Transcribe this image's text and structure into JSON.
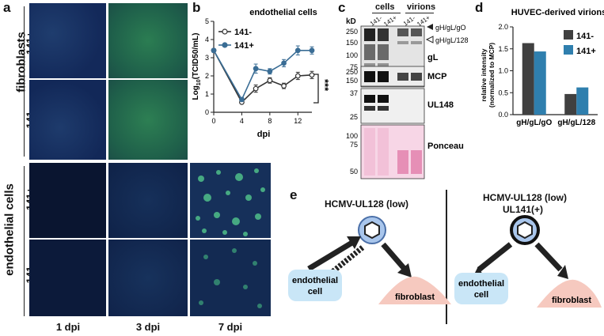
{
  "panel_a": {
    "label": "a",
    "groups": [
      {
        "name": "fibroblasts",
        "rows": [
          "141+",
          "141-"
        ]
      },
      {
        "name": "endothelial cells",
        "rows": [
          "141+",
          "141-"
        ]
      }
    ],
    "columns": [
      "1 dpi",
      "3 dpi",
      "7 dpi"
    ]
  },
  "panel_b": {
    "label": "b",
    "significance": "***",
    "chart_data": {
      "type": "line",
      "title": "endothelial cells",
      "xlabel": "dpi",
      "ylabel": "Log10(TCID50/mL)",
      "ylabel_main": "Log",
      "ylabel_sub": "10",
      "ylabel_rest": "(TCID50/mL)",
      "xlim": [
        0,
        14
      ],
      "ylim": [
        0,
        5
      ],
      "xticks": [
        "0",
        "4",
        "8",
        "12"
      ],
      "xticks_vals": [
        0,
        4,
        8,
        12
      ],
      "yticks": [
        "0",
        "1",
        "2",
        "3",
        "4",
        "5"
      ],
      "x": [
        0,
        4,
        6,
        8,
        10,
        12,
        14
      ],
      "series": [
        {
          "name": "141-",
          "values": [
            3.4,
            0.55,
            1.3,
            1.75,
            1.45,
            2.0,
            2.05
          ],
          "err": [
            0.1,
            0.08,
            0.2,
            0.15,
            0.15,
            0.2,
            0.2
          ],
          "color": "#333333",
          "marker": "open-circle"
        },
        {
          "name": "141+",
          "values": [
            3.4,
            0.7,
            2.4,
            2.25,
            2.7,
            3.4,
            3.4
          ],
          "err": [
            0.1,
            0.1,
            0.25,
            0.15,
            0.2,
            0.25,
            0.2
          ],
          "color": "#3a6d95",
          "marker": "filled-circle"
        }
      ],
      "legend_position": "top-left"
    }
  },
  "panel_c": {
    "label": "c",
    "kd_label": "kD",
    "groups": [
      {
        "name": "cells",
        "lanes": [
          "141-",
          "141+"
        ]
      },
      {
        "name": "virions",
        "lanes": [
          "141-",
          "141+"
        ]
      }
    ],
    "blots": [
      {
        "name": "gL",
        "markers": [
          "250",
          "150",
          "100",
          "75"
        ]
      },
      {
        "name": "MCP",
        "markers": [
          "250",
          "150"
        ]
      },
      {
        "name": "UL148",
        "markers": [
          "37",
          "25"
        ]
      },
      {
        "name": "Ponceau",
        "markers": [
          "100",
          "75",
          "50"
        ]
      }
    ],
    "band_annotations": [
      "gH/gL/gO",
      "gH/gL/128"
    ]
  },
  "panel_d": {
    "label": "d",
    "chart_data": {
      "type": "bar",
      "title": "HUVEC-derived virions",
      "ylabel": "relative intensity",
      "ylabel2": "(normalized to MCP)",
      "categories": [
        "gH/gL/gO",
        "gH/gL/128"
      ],
      "ylim": [
        0,
        2.0
      ],
      "yticks": [
        "0.0",
        "0.5",
        "1.0",
        "1.5",
        "2.0"
      ],
      "series": [
        {
          "name": "141-",
          "values": [
            1.63,
            0.47
          ],
          "color": "#404040"
        },
        {
          "name": "141+",
          "values": [
            1.44,
            0.62
          ],
          "color": "#2f7fae"
        }
      ],
      "legend_position": "top-right"
    }
  },
  "panel_e": {
    "label": "e",
    "left": {
      "title": "HCMV-UL128 (low)",
      "target1": "endothelial cell",
      "target1_line1": "endothelial",
      "target1_line2": "cell",
      "target2": "fibroblast"
    },
    "right": {
      "title": "HCMV-UL128 (low)",
      "subtitle": "UL141(+)",
      "target1_line1": "endothelial",
      "target1_line2": "cell",
      "target2": "fibroblast"
    }
  },
  "colors": {
    "blue_line": "#3a6d95",
    "dark_line": "#333333",
    "endo_fill": "#c9e6f7",
    "fibro_fill": "#f6c9bf",
    "virion_fill": "#a9c6ec"
  }
}
